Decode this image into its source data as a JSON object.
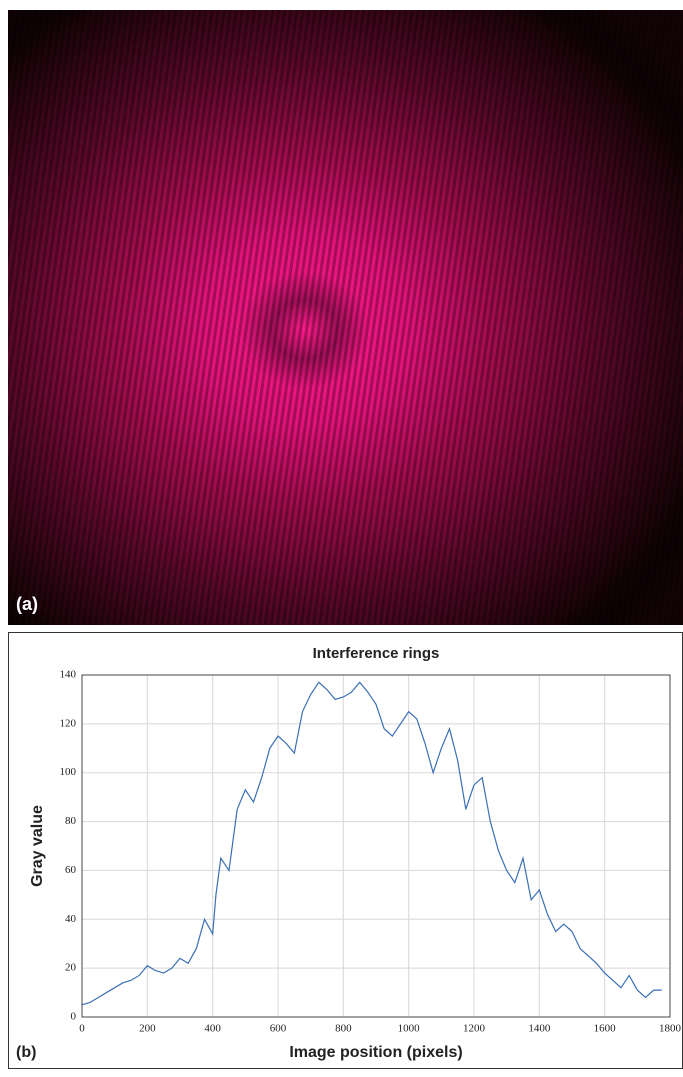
{
  "figure": {
    "image_label": "(a)"
  },
  "chart_data": {
    "type": "line",
    "title": "Interference rings",
    "panel_label": "(b)",
    "x_label": "Image position (pixels)",
    "y_label": "Gray value",
    "x": [
      0,
      25,
      50,
      75,
      100,
      125,
      150,
      175,
      200,
      225,
      250,
      275,
      300,
      325,
      350,
      375,
      400,
      410,
      425,
      450,
      475,
      500,
      525,
      550,
      575,
      600,
      625,
      650,
      675,
      700,
      725,
      750,
      775,
      800,
      825,
      850,
      875,
      900,
      925,
      950,
      975,
      1000,
      1025,
      1050,
      1075,
      1100,
      1125,
      1150,
      1175,
      1200,
      1225,
      1250,
      1275,
      1300,
      1325,
      1350,
      1375,
      1400,
      1425,
      1450,
      1475,
      1500,
      1525,
      1550,
      1575,
      1600,
      1625,
      1650,
      1675,
      1700,
      1725,
      1750,
      1775
    ],
    "series": [
      {
        "color": "#3b6fb6",
        "values": [
          5,
          6,
          8,
          10,
          12,
          14,
          15,
          17,
          21,
          19,
          18,
          20,
          24,
          22,
          28,
          40,
          34,
          50,
          65,
          60,
          85,
          93,
          88,
          98,
          110,
          115,
          112,
          108,
          125,
          132,
          137,
          134,
          130,
          131,
          133,
          137,
          133,
          128,
          118,
          115,
          120,
          125,
          122,
          112,
          100,
          110,
          118,
          105,
          85,
          95,
          98,
          80,
          68,
          60,
          55,
          65,
          48,
          52,
          42,
          35,
          38,
          35,
          28,
          25,
          22,
          18,
          15,
          12,
          17,
          11,
          8,
          11,
          11
        ]
      }
    ],
    "xlim": [
      0,
      1800
    ],
    "xticks": [
      0,
      200,
      400,
      600,
      800,
      1000,
      1200,
      1400,
      1600,
      1800
    ],
    "ylim": [
      0,
      140
    ],
    "yticks": [
      0,
      20,
      40,
      60,
      80,
      100,
      120,
      140
    ],
    "grid": true
  }
}
